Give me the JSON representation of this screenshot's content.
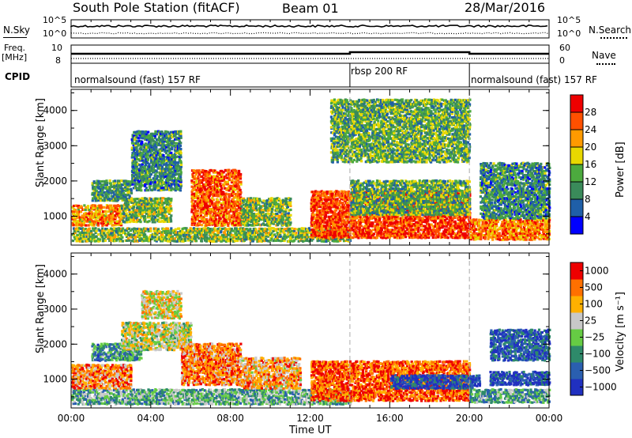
{
  "header": {
    "station": "South Pole Station (fitACF)",
    "beam": "Beam 01",
    "date": "28/Mar/2016"
  },
  "strips": {
    "nsky_label": "N.Sky",
    "nsky_ticks": [
      "10^5",
      "10^0"
    ],
    "nsearch_label": "N.Search",
    "nsearch_ticks": [
      "10^5",
      "10^0"
    ],
    "freq_label_1": "Freq.",
    "freq_label_2": "[MHz]",
    "freq_ticks": [
      "10",
      "8"
    ],
    "nave_label": "Nave",
    "nave_ticks": [
      "60",
      "0"
    ],
    "cpid_label": "CPID",
    "cpid_segments": [
      {
        "label": "normalsound (fast) 157 RF",
        "start": 0,
        "end": 14
      },
      {
        "label": "rbsp 200 RF",
        "start": 14,
        "end": 20
      },
      {
        "label": "normalsound (fast) 157 RF",
        "start": 20,
        "end": 24
      }
    ]
  },
  "chart_data": [
    {
      "type": "heatmap",
      "panel": "power",
      "ylabel": "Slant Range [km]",
      "yticks": [
        "1000",
        "2000",
        "3000",
        "4000"
      ],
      "ylim": [
        180,
        4600
      ],
      "xlim": [
        0,
        24
      ],
      "colorbar_label": "Power [dB]",
      "colorbar_ticks": [
        "4",
        "8",
        "12",
        "16",
        "20",
        "24",
        "28"
      ],
      "colorbar_range": [
        0,
        32
      ],
      "colors": [
        "#0000ff",
        "#1f5fa8",
        "#3a8a5a",
        "#4caa3e",
        "#e8d800",
        "#ff9a00",
        "#ff5000",
        "#ee0000"
      ],
      "regions": [
        {
          "t0": 0.0,
          "t1": 14.0,
          "r0": 250,
          "r1": 650,
          "level": 0.45
        },
        {
          "t0": 0.0,
          "t1": 2.5,
          "r0": 700,
          "r1": 1300,
          "level": 0.7
        },
        {
          "t0": 2.5,
          "t1": 5.0,
          "r0": 800,
          "r1": 1500,
          "level": 0.45
        },
        {
          "t0": 1.0,
          "t1": 3.0,
          "r0": 1400,
          "r1": 2000,
          "level": 0.35
        },
        {
          "t0": 3.0,
          "t1": 5.5,
          "r0": 1700,
          "r1": 3400,
          "level": 0.3
        },
        {
          "t0": 6.0,
          "t1": 8.5,
          "r0": 700,
          "r1": 2300,
          "level": 0.8
        },
        {
          "t0": 8.5,
          "t1": 11.0,
          "r0": 700,
          "r1": 1500,
          "level": 0.45
        },
        {
          "t0": 12.0,
          "t1": 20.0,
          "r0": 350,
          "r1": 1700,
          "level": 0.85
        },
        {
          "t0": 14.0,
          "t1": 20.0,
          "r0": 1000,
          "r1": 2000,
          "level": 0.4
        },
        {
          "t0": 20.0,
          "t1": 24.0,
          "r0": 300,
          "r1": 900,
          "level": 0.75
        },
        {
          "t0": 20.5,
          "t1": 24.0,
          "r0": 900,
          "r1": 2500,
          "level": 0.3
        },
        {
          "t0": 13.0,
          "t1": 20.0,
          "r0": 2500,
          "r1": 4300,
          "level": 0.4
        }
      ]
    },
    {
      "type": "heatmap",
      "panel": "velocity",
      "ylabel": "Slant Range [km]",
      "yticks": [
        "1000",
        "2000",
        "3000",
        "4000"
      ],
      "ylim": [
        180,
        4600
      ],
      "xlim": [
        0,
        24
      ],
      "xticks": [
        "00:00",
        "04:00",
        "08:00",
        "12:00",
        "16:00",
        "20:00",
        "00:00"
      ],
      "xlabel": "Time UT",
      "colorbar_label": "Velocity [m s⁻¹]",
      "colorbar_ticks": [
        "1000",
        "500",
        "100",
        "25",
        "−25",
        "−100",
        "−500",
        "−1000"
      ],
      "colors": [
        "#2030c0",
        "#2a5fb0",
        "#2e8a6a",
        "#66cc44",
        "#c8c8c8",
        "#ffb000",
        "#ff7000",
        "#ee0000"
      ],
      "regions": [
        {
          "t0": 0.0,
          "t1": 14.0,
          "r0": 250,
          "r1": 700,
          "level": 0.4
        },
        {
          "t0": 0.0,
          "t1": 3.0,
          "r0": 700,
          "r1": 1400,
          "level": 0.75
        },
        {
          "t0": 1.0,
          "t1": 3.5,
          "r0": 1500,
          "r1": 2000,
          "level": 0.3
        },
        {
          "t0": 2.5,
          "t1": 6.0,
          "r0": 1800,
          "r1": 2600,
          "level": 0.55
        },
        {
          "t0": 3.5,
          "t1": 5.5,
          "r0": 2700,
          "r1": 3500,
          "level": 0.6
        },
        {
          "t0": 5.5,
          "t1": 8.5,
          "r0": 800,
          "r1": 2000,
          "level": 0.78
        },
        {
          "t0": 8.5,
          "t1": 11.5,
          "r0": 700,
          "r1": 1600,
          "level": 0.7
        },
        {
          "t0": 12.0,
          "t1": 20.0,
          "r0": 350,
          "r1": 1500,
          "level": 0.85
        },
        {
          "t0": 16.0,
          "t1": 20.5,
          "r0": 700,
          "r1": 1100,
          "level": 0.1
        },
        {
          "t0": 20.0,
          "t1": 24.0,
          "r0": 300,
          "r1": 700,
          "level": 0.35
        },
        {
          "t0": 21.0,
          "t1": 24.0,
          "r0": 800,
          "r1": 1200,
          "level": 0.1
        },
        {
          "t0": 21.0,
          "t1": 24.0,
          "r0": 1500,
          "r1": 2400,
          "level": 0.15
        }
      ]
    }
  ]
}
